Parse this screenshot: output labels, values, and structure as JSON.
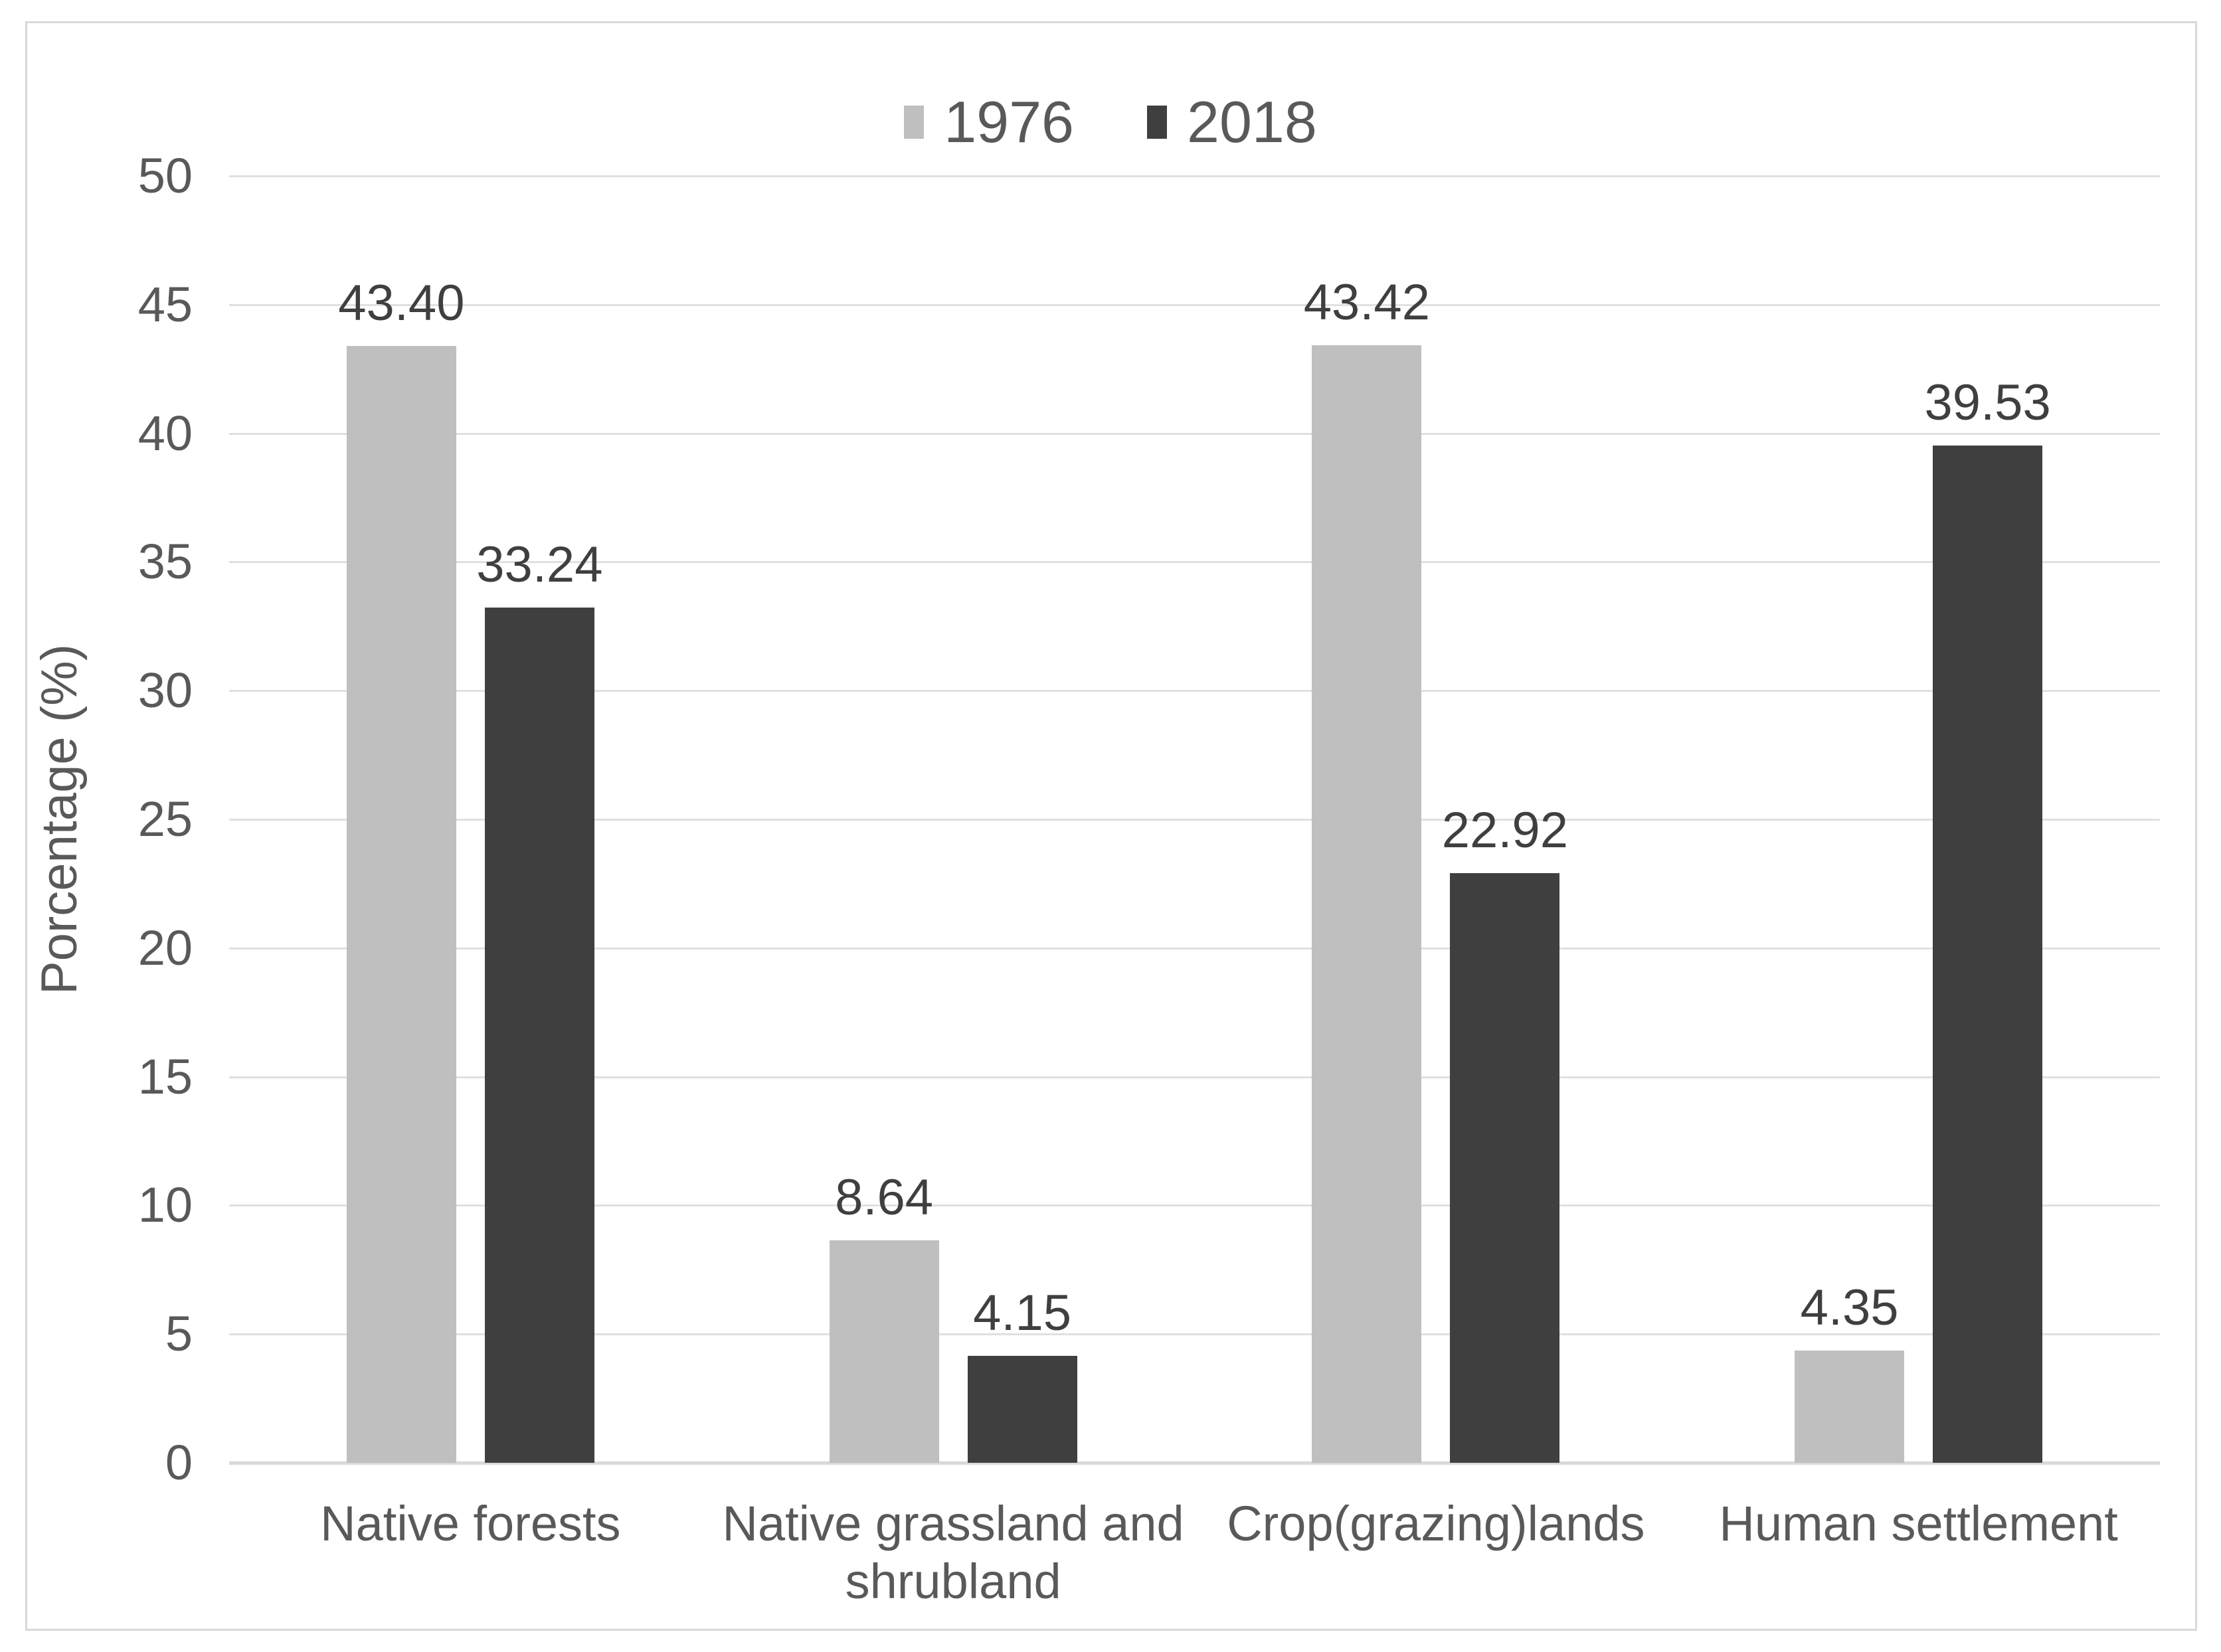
{
  "chart_data": {
    "type": "bar",
    "title": "",
    "ylabel": "Porcentage (%)",
    "xlabel": "",
    "ylim": [
      0,
      50
    ],
    "ytick_step": 5,
    "yticks": [
      0,
      5,
      10,
      15,
      20,
      25,
      30,
      35,
      40,
      45,
      50
    ],
    "grid": true,
    "legend_position": "top-center",
    "categories": [
      "Native forests",
      "Native grassland and shrubland",
      "Crop(grazing)lands",
      "Human settlement"
    ],
    "series": [
      {
        "name": "1976",
        "color": "#bfbfbf",
        "values": [
          43.4,
          8.64,
          43.42,
          4.35
        ],
        "value_labels": [
          "43.40",
          "8.64",
          "43.42",
          "4.35"
        ]
      },
      {
        "name": "2018",
        "color": "#3f3f3f",
        "values": [
          33.24,
          4.15,
          22.92,
          39.53
        ],
        "value_labels": [
          "33.24",
          "4.15",
          "22.92",
          "39.53"
        ]
      }
    ],
    "colors": {
      "background": "#ffffff",
      "frame_border": "#d9d9d9",
      "gridline": "#e0e0e0",
      "axis_line": "#d9d9d9",
      "tick_text": "#595959",
      "category_text": "#595959",
      "data_label_text": "#3f3f3f",
      "legend_text": "#595959"
    }
  }
}
